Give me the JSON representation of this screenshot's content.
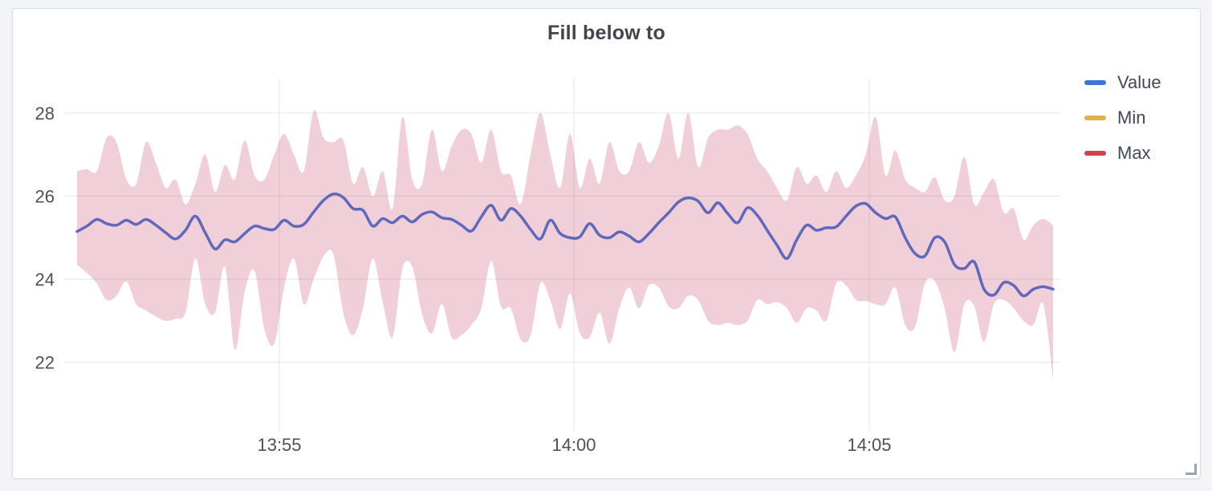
{
  "panel": {
    "title": "Fill below to"
  },
  "legend": {
    "items": [
      {
        "label": "Value",
        "color": "#3C74DA"
      },
      {
        "label": "Min",
        "color": "#DEB24C"
      },
      {
        "label": "Max",
        "color": "#CE4150"
      }
    ]
  },
  "colors": {
    "band_fill": "rgba(200,70,103,0.26)",
    "value_line": "#3C74DA",
    "grid": "#E2E4E7",
    "tick_text": "#4C515A",
    "title_text": "#40454E",
    "panel_border": "#D8DCE4",
    "page_background": "#F2F4F7"
  },
  "chart_data": {
    "type": "line",
    "title": "Fill below to",
    "xlabel": "",
    "ylabel": "",
    "x_ticks": [
      "13:55",
      "14:00",
      "14:05"
    ],
    "y_ticks": [
      28,
      26,
      24,
      22
    ],
    "ylim": [
      20.35,
      28.83
    ],
    "grid": true,
    "legend_position": "right",
    "band": {
      "upper": "Max",
      "lower": "Min",
      "note": "Max series fills below to Min; semi-transparent red band drawn over the Value line"
    },
    "series": [
      {
        "name": "Value",
        "values": [
          25.15,
          25.28,
          25.44,
          25.34,
          25.3,
          25.42,
          25.32,
          25.44,
          25.3,
          25.12,
          24.97,
          25.18,
          25.52,
          25.12,
          24.73,
          24.95,
          24.9,
          25.1,
          25.28,
          25.22,
          25.2,
          25.42,
          25.28,
          25.32,
          25.62,
          25.9,
          26.05,
          25.97,
          25.7,
          25.66,
          25.28,
          25.46,
          25.36,
          25.52,
          25.38,
          25.56,
          25.62,
          25.48,
          25.44,
          25.3,
          25.16,
          25.5,
          25.78,
          25.42,
          25.7,
          25.52,
          25.2,
          24.97,
          25.42,
          25.1,
          25.0,
          25.02,
          25.34,
          25.06,
          25.0,
          25.14,
          25.04,
          24.9,
          25.1,
          25.36,
          25.6,
          25.86,
          25.96,
          25.88,
          25.6,
          25.84,
          25.58,
          25.36,
          25.72,
          25.54,
          25.18,
          24.82,
          24.5,
          24.95,
          25.3,
          25.18,
          25.24,
          25.26,
          25.52,
          25.76,
          25.82,
          25.6,
          25.46,
          25.5,
          25.0,
          24.62,
          24.56,
          25.0,
          24.9,
          24.35,
          24.26,
          24.42,
          23.76,
          23.62,
          23.92,
          23.85,
          23.6,
          23.76,
          23.82,
          23.76
        ]
      },
      {
        "name": "Min",
        "values": [
          24.35,
          24.15,
          23.9,
          23.5,
          23.6,
          23.95,
          23.4,
          23.25,
          23.1,
          23.0,
          23.05,
          23.2,
          24.5,
          23.4,
          23.2,
          24.3,
          22.3,
          23.7,
          24.2,
          22.8,
          22.45,
          23.8,
          24.5,
          23.4,
          24.0,
          24.55,
          24.6,
          23.2,
          22.65,
          23.3,
          24.5,
          23.45,
          22.6,
          24.25,
          24.3,
          23.15,
          22.7,
          23.4,
          22.6,
          22.65,
          22.9,
          23.3,
          24.45,
          23.35,
          23.3,
          22.55,
          22.65,
          23.9,
          23.5,
          22.8,
          23.65,
          22.7,
          22.6,
          23.2,
          22.45,
          23.3,
          23.8,
          23.3,
          23.85,
          23.8,
          23.35,
          23.3,
          23.6,
          23.5,
          23.0,
          22.9,
          22.95,
          22.9,
          23.0,
          23.5,
          23.4,
          23.45,
          23.3,
          22.95,
          23.3,
          23.25,
          23.0,
          23.9,
          23.85,
          23.5,
          23.48,
          23.4,
          23.4,
          23.8,
          22.9,
          22.85,
          23.9,
          23.95,
          23.3,
          22.25,
          23.4,
          23.35,
          22.5,
          23.4,
          23.5,
          23.3,
          23.0,
          22.9,
          23.4,
          21.6
        ]
      },
      {
        "name": "Max",
        "values": [
          26.6,
          26.65,
          26.6,
          27.4,
          27.3,
          26.4,
          26.3,
          27.3,
          26.8,
          26.2,
          26.4,
          25.8,
          26.3,
          27.0,
          26.1,
          26.75,
          26.4,
          27.35,
          26.5,
          26.4,
          27.0,
          27.5,
          27.0,
          26.6,
          28.05,
          27.4,
          27.3,
          27.35,
          26.3,
          26.7,
          26.0,
          26.6,
          25.7,
          27.9,
          26.4,
          26.3,
          27.6,
          26.6,
          27.2,
          27.6,
          27.5,
          26.8,
          27.6,
          26.6,
          26.5,
          25.8,
          27.0,
          28.0,
          27.0,
          26.2,
          27.5,
          26.2,
          26.9,
          26.3,
          27.3,
          26.6,
          26.6,
          27.3,
          26.8,
          27.2,
          28.0,
          26.9,
          28.0,
          26.7,
          27.4,
          27.6,
          27.6,
          27.7,
          27.5,
          26.9,
          26.6,
          26.2,
          25.9,
          26.7,
          26.3,
          26.5,
          26.1,
          26.6,
          26.2,
          26.5,
          27.0,
          27.9,
          26.5,
          27.1,
          26.4,
          26.2,
          26.1,
          26.45,
          25.9,
          26.0,
          26.95,
          25.8,
          26.1,
          26.4,
          25.6,
          25.7,
          24.95,
          25.3,
          25.45,
          25.3
        ]
      }
    ]
  }
}
